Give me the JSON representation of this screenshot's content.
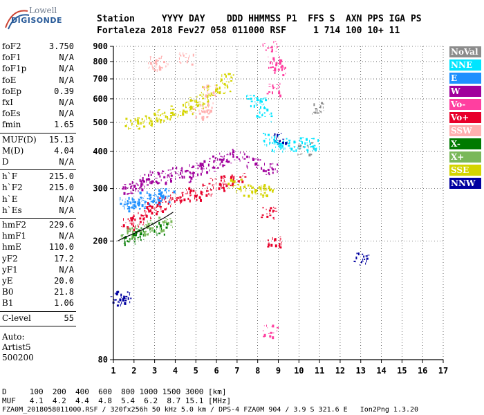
{
  "logo": {
    "top": "Lowell",
    "bottom": "DIGISONDE"
  },
  "header": {
    "row1": "Station     YYYY DAY    DDD HHMMSS P1  FFS S  AXN PPS IGA PS",
    "row2": "Fortaleza 2018 Fev27 058 011000 RSF     1 714 100 10+ 11"
  },
  "params": {
    "group1": [
      {
        "label": "foF2",
        "value": "3.750"
      },
      {
        "label": "foF1",
        "value": "N/A"
      },
      {
        "label": "foF1p",
        "value": "N/A"
      },
      {
        "label": "foE",
        "value": "N/A"
      },
      {
        "label": "foEp",
        "value": "0.39"
      },
      {
        "label": "fxI",
        "value": "N/A"
      },
      {
        "label": "foEs",
        "value": "N/A"
      },
      {
        "label": "fmin",
        "value": "1.65"
      }
    ],
    "group2": [
      {
        "label": "MUF(D)",
        "value": "15.13"
      },
      {
        "label": "M(D)",
        "value": "4.04"
      },
      {
        "label": "D",
        "value": "N/A"
      }
    ],
    "group3": [
      {
        "label": "h`F",
        "value": "215.0"
      },
      {
        "label": "h`F2",
        "value": "215.0"
      },
      {
        "label": "h`E",
        "value": "N/A"
      },
      {
        "label": "h`Es",
        "value": "N/A"
      }
    ],
    "group4": [
      {
        "label": "hmF2",
        "value": "229.6"
      },
      {
        "label": "hmF1",
        "value": "N/A"
      },
      {
        "label": "hmE",
        "value": "110.0"
      },
      {
        "label": "yF2",
        "value": "17.2"
      },
      {
        "label": "yF1",
        "value": "N/A"
      },
      {
        "label": "yE",
        "value": "20.0"
      },
      {
        "label": "B0",
        "value": "21.8"
      },
      {
        "label": "B1",
        "value": "1.06"
      }
    ],
    "group5": [
      {
        "label": "C-level",
        "value": "55"
      }
    ],
    "footer": [
      "Auto:",
      "Artist5",
      "500200"
    ]
  },
  "legend": [
    {
      "label": "NoVal",
      "bg": "#8c8c8c",
      "fg": "#ffffff"
    },
    {
      "label": "NNE",
      "bg": "#00e5ff",
      "fg": "#ffffff"
    },
    {
      "label": "E",
      "bg": "#1e90ff",
      "fg": "#ffffff"
    },
    {
      "label": "W",
      "bg": "#a0009c",
      "fg": "#ffffff"
    },
    {
      "label": "Vo-",
      "bg": "#ff3fa0",
      "fg": "#ffffff"
    },
    {
      "label": "Vo+",
      "bg": "#e8002a",
      "fg": "#ffffff"
    },
    {
      "label": "SSW",
      "bg": "#ffb0b0",
      "fg": "#ffffff"
    },
    {
      "label": "X-",
      "bg": "#007a00",
      "fg": "#ffffff"
    },
    {
      "label": "X+",
      "bg": "#7ab85a",
      "fg": "#ffffff"
    },
    {
      "label": "SSE",
      "bg": "#d4d400",
      "fg": "#ffffff"
    },
    {
      "label": "NNW",
      "bg": "#0000a0",
      "fg": "#ffffff"
    }
  ],
  "bottom": {
    "row1": "D     100  200  400  600  800 1000 1500 3000 [km]",
    "row2": "MUF   4.1  4.2  4.4  4.8  5.4  6.2  8.7 15.1 [MHz]",
    "row3": "FZA0M_2018058011000.RSF / 320fx256h 50 kHz 5.0 km / DPS-4 FZA0M 904 / 3.9 S 321.6 E   Ion2Png 1.3.20"
  },
  "chart_data": {
    "type": "scatter",
    "title": "",
    "xlabel": "",
    "ylabel": "",
    "x_ticks": [
      "1",
      "2",
      "3",
      "4",
      "5",
      "6",
      "7",
      "8",
      "9",
      "10",
      "11",
      "12",
      "13",
      "14",
      "15",
      "16",
      "17"
    ],
    "y_ticks": [
      "80",
      "200",
      "300",
      "400",
      "500",
      "600",
      "700",
      "800",
      "900"
    ],
    "xlim": [
      1,
      17
    ],
    "yscale": "log",
    "ylim": [
      80,
      900
    ],
    "grid": true,
    "legend_position": "right",
    "series": [
      {
        "name": "W",
        "points": [
          [
            1.7,
            300
          ],
          [
            2.2,
            310
          ],
          [
            2.6,
            320
          ],
          [
            3.0,
            330
          ],
          [
            3.4,
            330
          ],
          [
            4.0,
            340
          ],
          [
            4.5,
            330
          ],
          [
            5.0,
            350
          ],
          [
            5.5,
            360
          ],
          [
            6.0,
            370
          ],
          [
            6.5,
            380
          ],
          [
            7.0,
            390
          ],
          [
            7.8,
            370
          ],
          [
            8.6,
            350
          ]
        ]
      },
      {
        "name": "E",
        "points": [
          [
            1.6,
            270
          ],
          [
            1.9,
            265
          ],
          [
            2.2,
            270
          ],
          [
            2.5,
            280
          ],
          [
            2.8,
            275
          ],
          [
            3.0,
            285
          ],
          [
            3.3,
            280
          ],
          [
            3.6,
            290
          ]
        ]
      },
      {
        "name": "Vo+",
        "points": [
          [
            1.7,
            230
          ],
          [
            2.1,
            235
          ],
          [
            2.5,
            250
          ],
          [
            3.0,
            260
          ],
          [
            3.5,
            270
          ],
          [
            4.0,
            280
          ],
          [
            4.5,
            285
          ],
          [
            5.0,
            290
          ],
          [
            5.5,
            300
          ],
          [
            6.0,
            310
          ],
          [
            6.5,
            320
          ],
          [
            7.0,
            330
          ],
          [
            8.5,
            250
          ],
          [
            8.8,
            200
          ]
        ]
      },
      {
        "name": "SSE",
        "points": [
          [
            1.9,
            500
          ],
          [
            2.5,
            510
          ],
          [
            3.0,
            520
          ],
          [
            3.5,
            530
          ],
          [
            4.0,
            550
          ],
          [
            4.5,
            560
          ],
          [
            5.0,
            580
          ],
          [
            5.3,
            600
          ],
          [
            5.6,
            640
          ],
          [
            6.3,
            660
          ],
          [
            6.5,
            700
          ],
          [
            6.8,
            310
          ],
          [
            7.5,
            300
          ],
          [
            8.0,
            290
          ],
          [
            8.4,
            300
          ]
        ]
      },
      {
        "name": "SSW",
        "points": [
          [
            3.0,
            800
          ],
          [
            3.3,
            780
          ],
          [
            4.5,
            820
          ],
          [
            5.2,
            540
          ],
          [
            5.5,
            560
          ],
          [
            5.7,
            640
          ]
        ]
      },
      {
        "name": "NNE",
        "points": [
          [
            7.8,
            600
          ],
          [
            8.0,
            580
          ],
          [
            8.3,
            530
          ],
          [
            8.6,
            440
          ],
          [
            8.9,
            420
          ],
          [
            9.2,
            430
          ],
          [
            9.8,
            420
          ],
          [
            10.4,
            425
          ],
          [
            10.7,
            420
          ]
        ]
      },
      {
        "name": "NNW",
        "points": [
          [
            1.2,
            128
          ],
          [
            1.5,
            130
          ],
          [
            9.0,
            440
          ],
          [
            13.0,
            175
          ]
        ]
      },
      {
        "name": "X+",
        "points": [
          [
            1.7,
            210
          ],
          [
            2.0,
            215
          ],
          [
            2.5,
            220
          ],
          [
            3.0,
            225
          ],
          [
            3.5,
            230
          ]
        ]
      },
      {
        "name": "X-",
        "points": [
          [
            1.8,
            205
          ],
          [
            2.4,
            212
          ],
          [
            3.2,
            222
          ]
        ]
      },
      {
        "name": "Vo-",
        "points": [
          [
            8.6,
            900
          ],
          [
            8.8,
            800
          ],
          [
            9.0,
            760
          ],
          [
            8.7,
            650
          ],
          [
            8.6,
            100
          ]
        ]
      },
      {
        "name": "NoVal",
        "points": [
          [
            10.3,
            410
          ],
          [
            11.0,
            560
          ]
        ]
      }
    ],
    "trace": {
      "points": [
        [
          1.2,
          200
        ],
        [
          1.5,
          205
        ],
        [
          2.0,
          212
        ],
        [
          2.5,
          220
        ],
        [
          3.0,
          230
        ],
        [
          3.5,
          240
        ],
        [
          3.9,
          250
        ]
      ]
    }
  }
}
